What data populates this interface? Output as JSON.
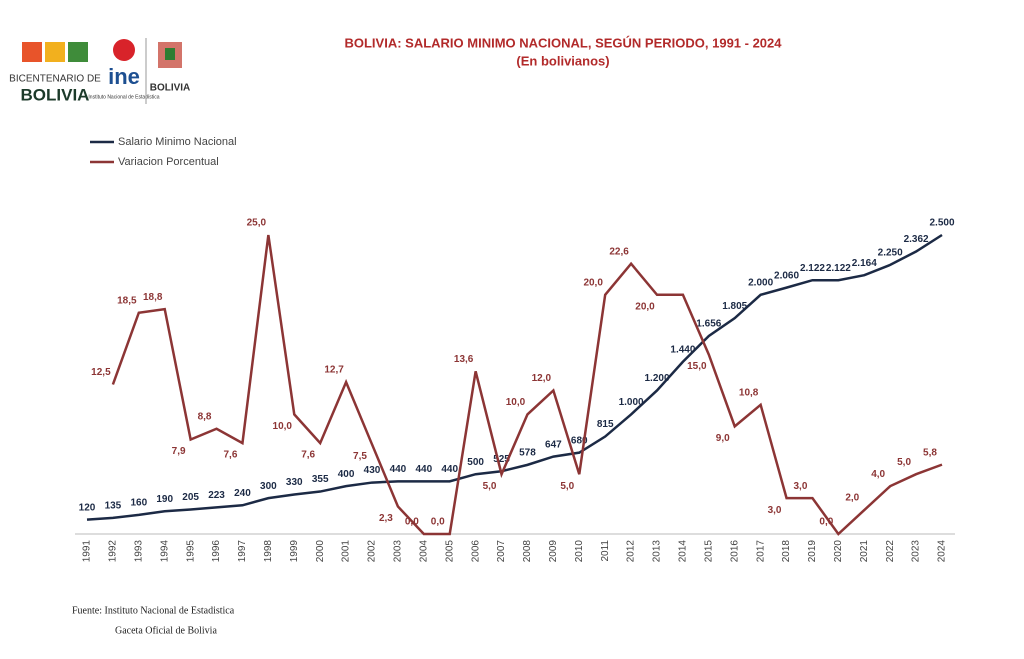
{
  "chart_data": {
    "type": "line",
    "title": "BOLIVIA: SALARIO MINIMO NACIONAL, SEGÚN PERIODO, 1991 - 2024",
    "subtitle": "(En bolivianos)",
    "categories": [
      "1991",
      "1992",
      "1993",
      "1994",
      "1995",
      "1996",
      "1997",
      "1998",
      "1999",
      "2000",
      "2001",
      "2002",
      "2003",
      "2004",
      "2005",
      "2006",
      "2007",
      "2008",
      "2009",
      "2010",
      "2011",
      "2012",
      "2013",
      "2014",
      "2015",
      "2016",
      "2017",
      "2018",
      "2019",
      "2020",
      "2021",
      "2022",
      "2023",
      "2024"
    ],
    "ylim": [
      0,
      2500
    ],
    "y2lim": [
      0,
      25
    ],
    "series": [
      {
        "name": "Salario Minimo Nacional",
        "color": "#1c2a45",
        "values": [
          120,
          135,
          160,
          190,
          205,
          223,
          240,
          300,
          330,
          355,
          400,
          430,
          440,
          440,
          440,
          500,
          525,
          578,
          647,
          680,
          815,
          1000,
          1200,
          1440,
          1656,
          1805,
          2000,
          2060,
          2122,
          2122,
          2164,
          2250,
          2362,
          2500
        ],
        "value_labels": [
          "120",
          "135",
          "160",
          "190",
          "205",
          "223",
          "240",
          "300",
          "330",
          "355",
          "400",
          "430",
          "440",
          "440",
          "440",
          "500",
          "525",
          "578",
          "647",
          "680",
          "815",
          "1.000",
          "1.200",
          "1.440",
          "1.656",
          "1.805",
          "2.000",
          "2.060",
          "2.122",
          "2.122",
          "2.164",
          "2.250",
          "2.362",
          "2.500"
        ]
      },
      {
        "name": "Variacion Porcentual",
        "color": "#8c3535",
        "axis": "y2",
        "values": [
          null,
          12.5,
          18.5,
          18.8,
          7.9,
          8.8,
          7.6,
          25.0,
          10.0,
          7.6,
          12.7,
          7.5,
          2.3,
          0.0,
          0.0,
          13.6,
          5.0,
          10.0,
          12.0,
          5.0,
          20.0,
          22.6,
          20.0,
          20.0,
          15.0,
          9.0,
          10.8,
          3.0,
          3.0,
          0.0,
          2.0,
          4.0,
          5.0,
          5.8
        ],
        "value_labels": [
          null,
          "12,5",
          "18,5",
          "18,8",
          "7,9",
          "8,8",
          "7,6",
          "25,0",
          "10,0",
          "7,6",
          "12,7",
          "7,5",
          "2,3",
          "0,0",
          "0,0",
          "13,6",
          "5,0",
          "10,0",
          "12,0",
          "5,0",
          "20,0",
          "22,6",
          "20,0",
          null,
          "15,0",
          "9,0",
          "10,8",
          "3,0",
          "3,0",
          "0,0",
          "2,0",
          "4,0",
          "5,0",
          "5,8"
        ]
      }
    ],
    "source": [
      "Fuente: Instituto Nacional de Estadistica",
      "Gaceta Oficial de Bolivia"
    ]
  },
  "logos": {
    "bicentenario": "BICENTENARIO DE",
    "bolivia": "BOLIVIA",
    "ine": "ine",
    "ine_sub": "Instituto Nacional de Estadística",
    "estado": "BOLIVIA"
  }
}
